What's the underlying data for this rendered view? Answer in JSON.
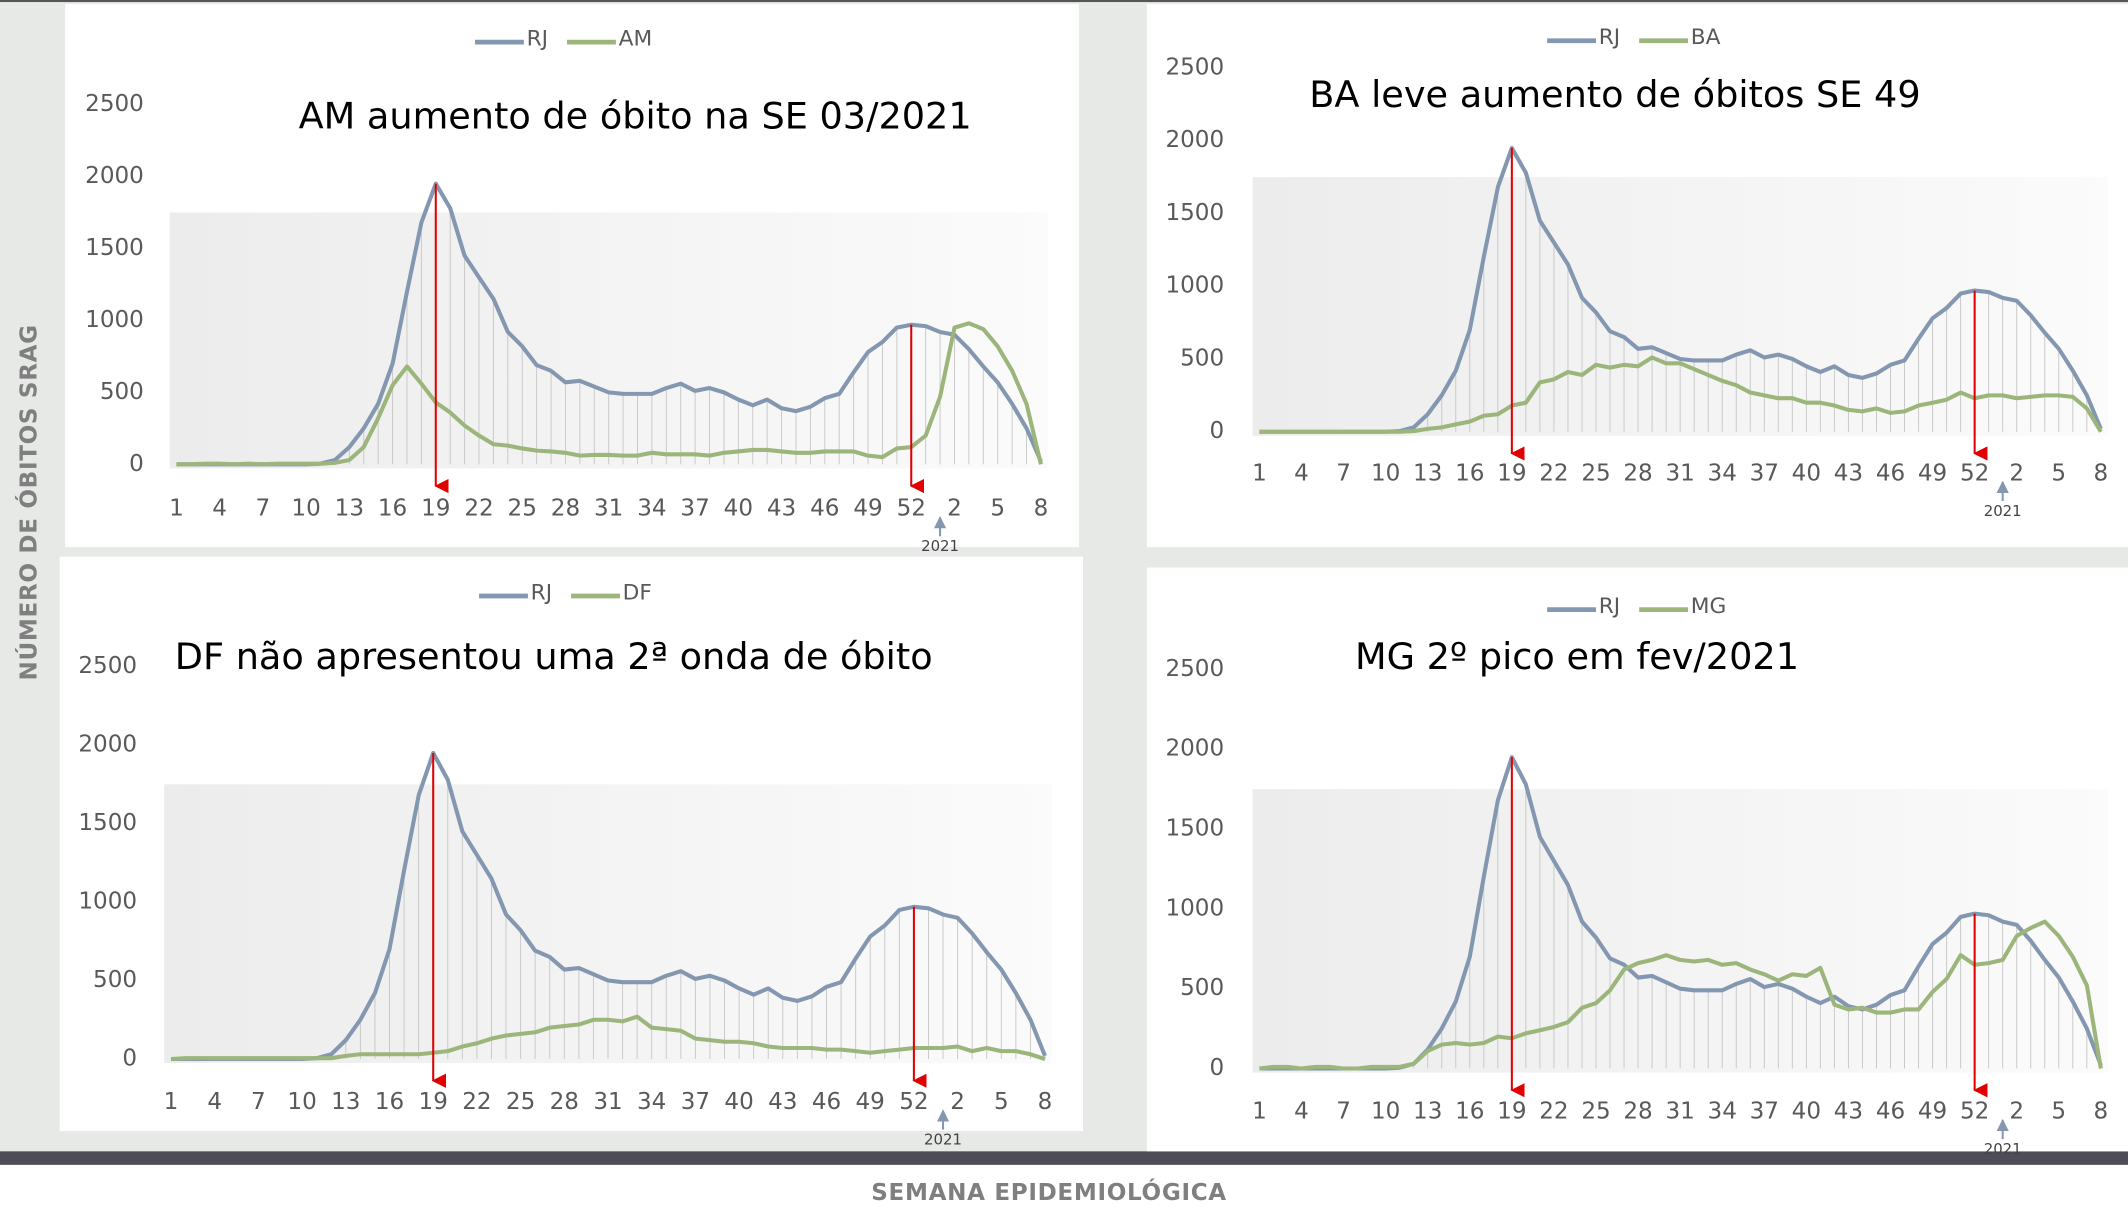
{
  "ylabel": "NÚMERO DE ÓBITOS SRAG",
  "xlabel": "SEMANA EPIDEMIOLÓGICA",
  "chart_data": [
    {
      "type": "line",
      "title": "AM aumento de óbito na SE 03/2021",
      "categories": [
        "1",
        null,
        null,
        "4",
        null,
        null,
        "7",
        null,
        null,
        "10",
        null,
        null,
        "13",
        null,
        null,
        "16",
        null,
        null,
        "19",
        null,
        null,
        "22",
        null,
        null,
        "25",
        null,
        null,
        "28",
        null,
        null,
        "31",
        null,
        null,
        "34",
        null,
        null,
        "37",
        null,
        null,
        "40",
        null,
        null,
        "43",
        null,
        null,
        "46",
        null,
        null,
        "49",
        null,
        null,
        "52",
        null,
        null,
        "2",
        null,
        null,
        "5",
        null,
        null,
        "8"
      ],
      "series": [
        {
          "name": "RJ",
          "color": "#8497b0",
          "values": [
            0,
            0,
            0,
            0,
            0,
            0,
            0,
            0,
            0,
            0,
            5,
            30,
            120,
            250,
            420,
            700,
            1200,
            1680,
            1950,
            1780,
            1450,
            1300,
            1150,
            920,
            820,
            690,
            650,
            570,
            580,
            540,
            500,
            490,
            490,
            490,
            530,
            560,
            510,
            530,
            500,
            450,
            410,
            450,
            390,
            370,
            400,
            460,
            490,
            640,
            780,
            850,
            950,
            970,
            960,
            920,
            900,
            800,
            680,
            570,
            420,
            250,
            20
          ]
        },
        {
          "name": "AM",
          "color": "#9bb57a",
          "values": [
            0,
            0,
            5,
            5,
            0,
            5,
            0,
            5,
            5,
            5,
            5,
            10,
            30,
            120,
            320,
            550,
            680,
            560,
            430,
            360,
            270,
            200,
            140,
            130,
            110,
            95,
            90,
            80,
            60,
            65,
            65,
            60,
            60,
            80,
            70,
            70,
            70,
            60,
            80,
            90,
            100,
            100,
            90,
            80,
            80,
            90,
            90,
            90,
            60,
            50,
            110,
            120,
            200,
            470,
            950,
            980,
            940,
            820,
            650,
            420,
            0
          ]
        }
      ],
      "ylim": [
        0,
        2500
      ],
      "yticks": [
        0,
        500,
        1000,
        1500,
        2000,
        2500
      ],
      "annotations": [
        {
          "text": "2021",
          "x": 53
        }
      ]
    },
    {
      "type": "line",
      "title": "BA leve aumento de óbitos SE 49",
      "categories": [
        "1",
        null,
        null,
        "4",
        null,
        null,
        "7",
        null,
        null,
        "10",
        null,
        null,
        "13",
        null,
        null,
        "16",
        null,
        null,
        "19",
        null,
        null,
        "22",
        null,
        null,
        "25",
        null,
        null,
        "28",
        null,
        null,
        "31",
        null,
        null,
        "34",
        null,
        null,
        "37",
        null,
        null,
        "40",
        null,
        null,
        "43",
        null,
        null,
        "46",
        null,
        null,
        "49",
        null,
        null,
        "52",
        null,
        null,
        "2",
        null,
        null,
        "5",
        null,
        null,
        "8"
      ],
      "series": [
        {
          "name": "RJ",
          "color": "#8497b0",
          "values": [
            0,
            0,
            0,
            0,
            0,
            0,
            0,
            0,
            0,
            0,
            5,
            30,
            120,
            250,
            420,
            700,
            1200,
            1680,
            1950,
            1780,
            1450,
            1300,
            1150,
            920,
            820,
            690,
            650,
            570,
            580,
            540,
            500,
            490,
            490,
            490,
            530,
            560,
            510,
            530,
            500,
            450,
            410,
            450,
            390,
            370,
            400,
            460,
            490,
            640,
            780,
            850,
            950,
            970,
            960,
            920,
            900,
            800,
            680,
            570,
            420,
            250,
            20
          ]
        },
        {
          "name": "BA",
          "color": "#9bb57a",
          "values": [
            0,
            0,
            0,
            0,
            0,
            0,
            0,
            0,
            0,
            0,
            0,
            5,
            20,
            30,
            50,
            70,
            110,
            120,
            180,
            200,
            340,
            360,
            410,
            390,
            460,
            440,
            460,
            450,
            510,
            470,
            470,
            430,
            390,
            350,
            320,
            270,
            250,
            230,
            230,
            200,
            200,
            180,
            150,
            140,
            160,
            130,
            140,
            180,
            200,
            220,
            270,
            230,
            250,
            250,
            230,
            240,
            250,
            250,
            240,
            160,
            0
          ]
        }
      ],
      "ylim": [
        0,
        2500
      ],
      "yticks": [
        0,
        500,
        1000,
        1500,
        2000,
        2500
      ],
      "annotations": [
        {
          "text": "2021",
          "x": 53
        }
      ]
    },
    {
      "type": "line",
      "title": "DF não apresentou uma 2ª onda de óbito",
      "categories": [
        "1",
        null,
        null,
        "4",
        null,
        null,
        "7",
        null,
        null,
        "10",
        null,
        null,
        "13",
        null,
        null,
        "16",
        null,
        null,
        "19",
        null,
        null,
        "22",
        null,
        null,
        "25",
        null,
        null,
        "28",
        null,
        null,
        "31",
        null,
        null,
        "34",
        null,
        null,
        "37",
        null,
        null,
        "40",
        null,
        null,
        "43",
        null,
        null,
        "46",
        null,
        null,
        "49",
        null,
        null,
        "52",
        null,
        null,
        "2",
        null,
        null,
        "5",
        null,
        null,
        "8"
      ],
      "series": [
        {
          "name": "RJ",
          "color": "#8497b0",
          "values": [
            0,
            0,
            0,
            0,
            0,
            0,
            0,
            0,
            0,
            0,
            5,
            30,
            120,
            250,
            420,
            700,
            1200,
            1680,
            1950,
            1780,
            1450,
            1300,
            1150,
            920,
            820,
            690,
            650,
            570,
            580,
            540,
            500,
            490,
            490,
            490,
            530,
            560,
            510,
            530,
            500,
            450,
            410,
            450,
            390,
            370,
            400,
            460,
            490,
            640,
            780,
            850,
            950,
            970,
            960,
            920,
            900,
            800,
            680,
            570,
            420,
            250,
            20
          ]
        },
        {
          "name": "DF",
          "color": "#9bb57a",
          "values": [
            0,
            5,
            5,
            5,
            5,
            5,
            5,
            5,
            5,
            5,
            5,
            5,
            20,
            30,
            30,
            30,
            30,
            30,
            40,
            50,
            80,
            100,
            130,
            150,
            160,
            170,
            200,
            210,
            220,
            250,
            250,
            240,
            270,
            200,
            190,
            180,
            130,
            120,
            110,
            110,
            100,
            80,
            70,
            70,
            70,
            60,
            60,
            50,
            40,
            50,
            60,
            70,
            70,
            70,
            80,
            50,
            70,
            50,
            50,
            30,
            0
          ]
        }
      ],
      "ylim": [
        0,
        2500
      ],
      "yticks": [
        0,
        500,
        1000,
        1500,
        2000,
        2500
      ],
      "annotations": [
        {
          "text": "2021",
          "x": 53
        }
      ]
    },
    {
      "type": "line",
      "title": "MG 2º pico em fev/2021",
      "categories": [
        "1",
        null,
        null,
        "4",
        null,
        null,
        "7",
        null,
        null,
        "10",
        null,
        null,
        "13",
        null,
        null,
        "16",
        null,
        null,
        "19",
        null,
        null,
        "22",
        null,
        null,
        "25",
        null,
        null,
        "28",
        null,
        null,
        "31",
        null,
        null,
        "34",
        null,
        null,
        "37",
        null,
        null,
        "40",
        null,
        null,
        "43",
        null,
        null,
        "46",
        null,
        null,
        "49",
        null,
        null,
        "52",
        null,
        null,
        "2",
        null,
        null,
        "5",
        null,
        null,
        "8"
      ],
      "series": [
        {
          "name": "RJ",
          "color": "#8497b0",
          "values": [
            0,
            0,
            0,
            0,
            0,
            0,
            0,
            0,
            0,
            0,
            5,
            30,
            120,
            250,
            420,
            700,
            1200,
            1680,
            1950,
            1780,
            1450,
            1300,
            1150,
            920,
            820,
            690,
            650,
            570,
            580,
            540,
            500,
            490,
            490,
            490,
            530,
            560,
            510,
            530,
            500,
            450,
            410,
            450,
            390,
            370,
            400,
            460,
            490,
            640,
            780,
            850,
            950,
            970,
            960,
            920,
            900,
            800,
            680,
            570,
            420,
            250,
            20
          ]
        },
        {
          "name": "MG",
          "color": "#9bb57a",
          "values": [
            0,
            10,
            10,
            0,
            10,
            10,
            0,
            0,
            10,
            10,
            10,
            30,
            110,
            150,
            160,
            150,
            160,
            200,
            190,
            220,
            240,
            260,
            290,
            380,
            410,
            490,
            620,
            660,
            680,
            710,
            680,
            670,
            680,
            650,
            660,
            620,
            590,
            550,
            590,
            580,
            630,
            400,
            370,
            380,
            350,
            350,
            370,
            370,
            480,
            560,
            710,
            650,
            660,
            680,
            830,
            880,
            920,
            830,
            700,
            520,
            0
          ]
        }
      ],
      "ylim": [
        0,
        2500
      ],
      "yticks": [
        0,
        500,
        1000,
        1500,
        2000,
        2500
      ],
      "annotations": [
        {
          "text": "2021",
          "x": 53
        }
      ]
    }
  ]
}
